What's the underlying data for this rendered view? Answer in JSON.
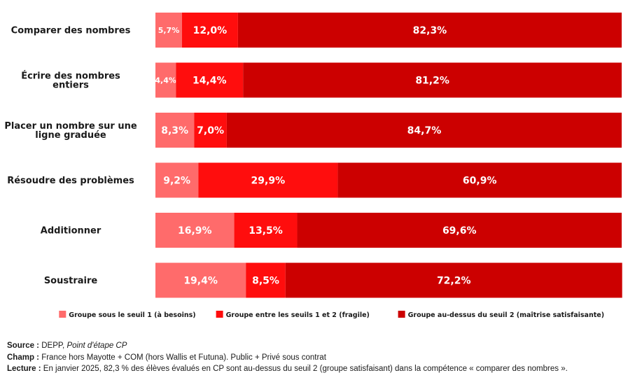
{
  "chart_data": {
    "type": "bar",
    "orientation": "horizontal",
    "stacked": true,
    "categories": [
      "Comparer des nombres",
      "Écrire des nombres entiers",
      "Placer un nombre sur une ligne graduée",
      "Résoudre des problèmes",
      "Additionner",
      "Soustraire"
    ],
    "series": [
      {
        "name": "Groupe sous le seuil 1 (à besoins)",
        "color": "#ff6b6b",
        "values": [
          5.7,
          4.4,
          8.3,
          9.2,
          16.9,
          19.4
        ],
        "labels": [
          "5,7%",
          "4,4%",
          "8,3%",
          "9,2%",
          "16,9%",
          "19,4%"
        ]
      },
      {
        "name": "Groupe entre les seuils 1 et 2 (fragile)",
        "color": "#ff0d0d",
        "values": [
          12.0,
          14.4,
          7.0,
          29.9,
          13.5,
          8.5
        ],
        "labels": [
          "12,0%",
          "14,4%",
          "7,0%",
          "29,9%",
          "13,5%",
          "8,5%"
        ]
      },
      {
        "name": "Groupe au-dessus du seuil 2 (maîtrise satisfaisante)",
        "color": "#cc0000",
        "values": [
          82.3,
          81.2,
          84.7,
          60.9,
          69.6,
          72.2
        ],
        "labels": [
          "82,3%",
          "81,2%",
          "84,7%",
          "60,9%",
          "69,6%",
          "72,2%"
        ]
      }
    ],
    "xlim": [
      0,
      100
    ],
    "grid": false,
    "legend": "bottom-right"
  },
  "notes": {
    "source_label": "Source :",
    "source_text": "DEPP, ",
    "source_italic": "Point d'étape CP",
    "champ_label": "Champ :",
    "champ_text": "France hors Mayotte + COM (hors Wallis et Futuna). Public + Privé sous contrat",
    "lecture_label": "Lecture :",
    "lecture_text": "En janvier 2025, 82,3 % des élèves évalués en CP sont au-dessus du seuil 2 (groupe satisfaisant) dans la compétence «  comparer des nombres  »."
  }
}
